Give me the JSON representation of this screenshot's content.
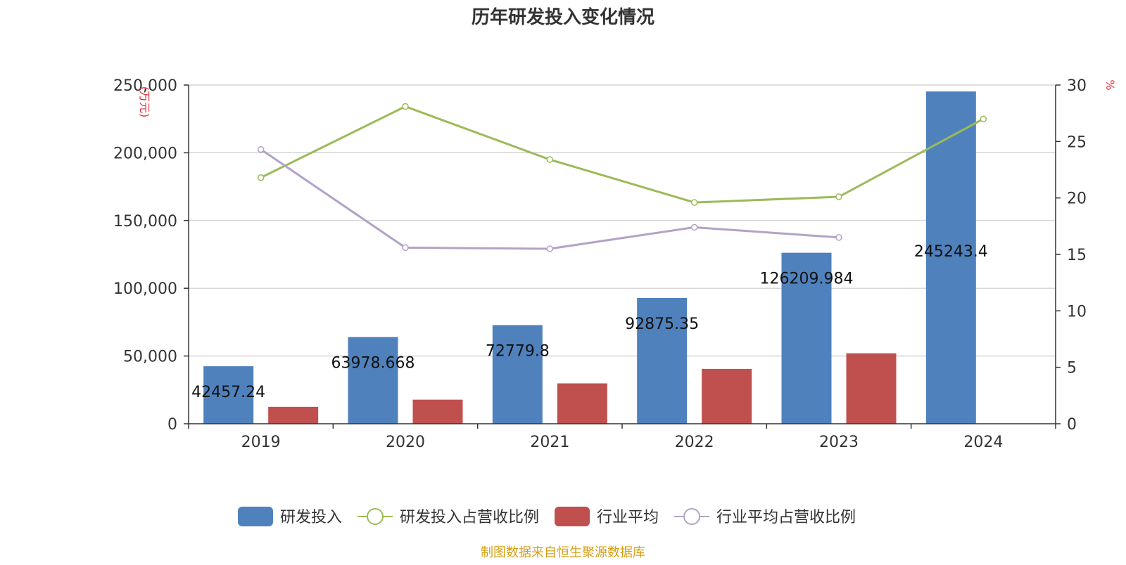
{
  "chart_data": {
    "type": "bar",
    "title": "历年研发投入变化情况",
    "left_axis_unit": "(万元)",
    "right_axis_unit": "%",
    "categories": [
      "2019",
      "2020",
      "2021",
      "2022",
      "2023",
      "2024"
    ],
    "y_left": {
      "min": 0,
      "max": 250000,
      "ticks": [
        0,
        50000,
        100000,
        150000,
        200000,
        250000
      ],
      "tick_labels": [
        "0",
        "50,000",
        "100,000",
        "150,000",
        "200,000",
        "250,000"
      ]
    },
    "y_right": {
      "min": 0,
      "max": 30,
      "ticks": [
        0,
        5,
        10,
        15,
        20,
        25,
        30
      ],
      "tick_labels": [
        "0",
        "5",
        "10",
        "15",
        "20",
        "25",
        "30"
      ]
    },
    "series": [
      {
        "name": "研发投入",
        "kind": "bar",
        "axis": "left",
        "color": "#4F81BD",
        "values": [
          42457.24,
          63978.668,
          72779.8,
          92875.35,
          126209.984,
          245243.4
        ],
        "labels": [
          "42457.24",
          "63978.668",
          "72779.8",
          "92875.35",
          "126209.984",
          "245243.4"
        ]
      },
      {
        "name": "行业平均",
        "kind": "bar",
        "axis": "left",
        "color": "#C0504D",
        "values": [
          12500,
          17800,
          29800,
          40500,
          52000,
          null
        ]
      },
      {
        "name": "研发投入占营收比例",
        "kind": "line",
        "axis": "right",
        "color": "#9BBB59",
        "values": [
          21.8,
          28.1,
          23.4,
          19.6,
          20.1,
          27.0
        ]
      },
      {
        "name": "行业平均占营收比例",
        "kind": "line",
        "axis": "right",
        "color": "#B3A2C7",
        "values": [
          24.3,
          15.6,
          15.5,
          17.4,
          16.5,
          null
        ]
      }
    ],
    "grid": true,
    "legend_position": "bottom"
  },
  "source": "制图数据来自恒生聚源数据库"
}
